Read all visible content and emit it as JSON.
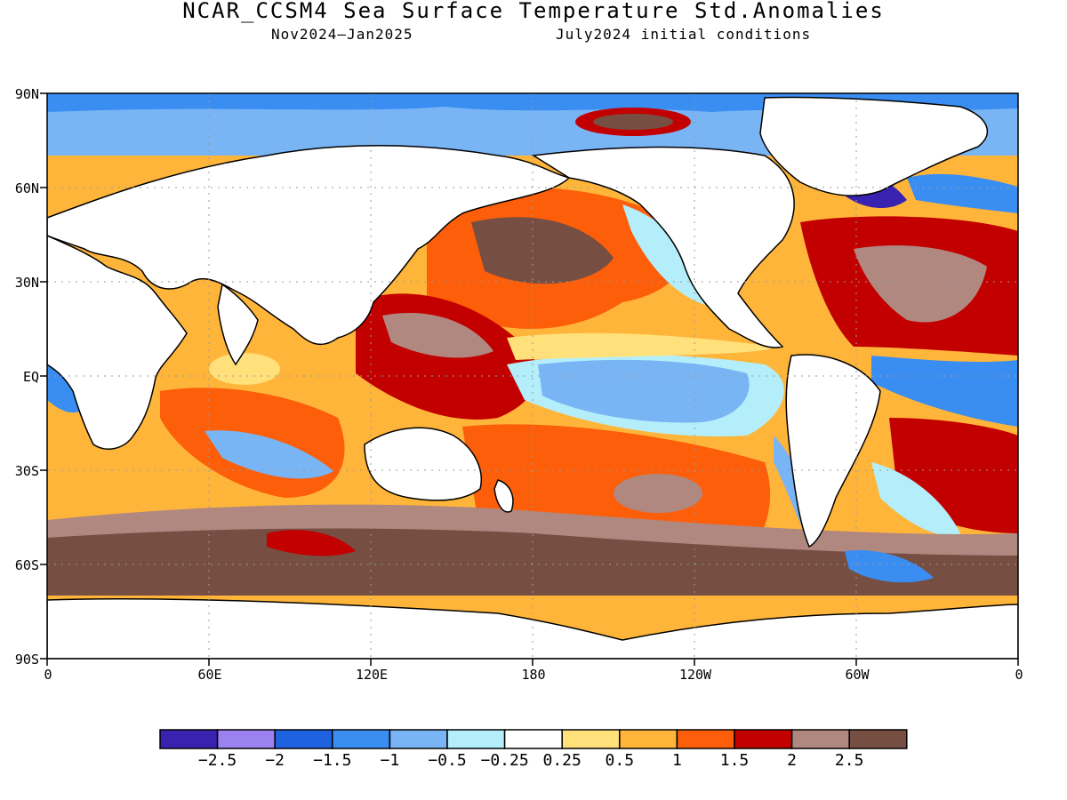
{
  "title": "NCAR_CCSM4 Sea Surface Temperature Std.Anomalies",
  "subtitle_left": "Nov2024—Jan2025",
  "subtitle_right": "July2024 initial conditions",
  "lat_labels": [
    "90N",
    "60N",
    "30N",
    "EQ",
    "30S",
    "60S",
    "90S"
  ],
  "lon_labels": [
    "0",
    "60E",
    "120E",
    "180",
    "120W",
    "60W",
    "0"
  ],
  "colorbar": {
    "colors": [
      "#3a22b0",
      "#9b82f0",
      "#1f62e0",
      "#3a8ef2",
      "#79b4f5",
      "#b3eefa",
      "#ffffff",
      "#ffe07a",
      "#ffb53a",
      "#fc5e0a",
      "#c30000",
      "#b08880",
      "#774e42"
    ],
    "labels": [
      "−2.5",
      "−2",
      "−1.5",
      "−1",
      "−0.5",
      "−0.25",
      "0.25",
      "0.5",
      "1",
      "1.5",
      "2",
      "2.5"
    ]
  }
}
